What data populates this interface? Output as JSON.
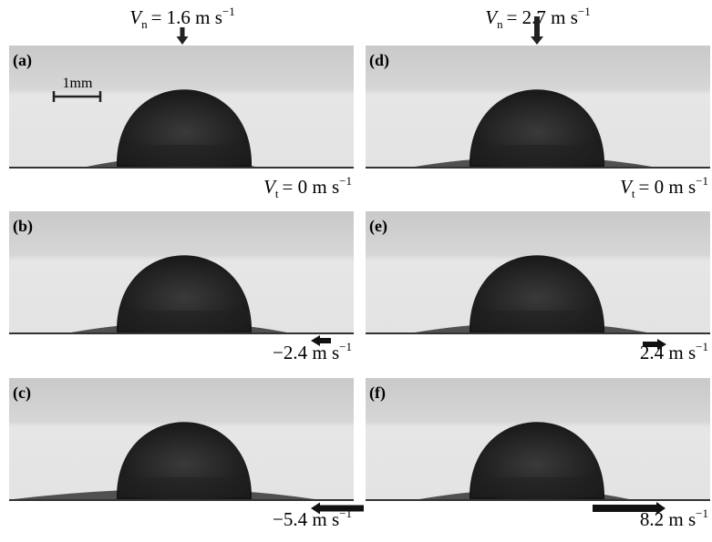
{
  "top_labels": [
    {
      "symbol": "V",
      "sub": "n",
      "text": "= 1.6  m s",
      "sup": "−1"
    },
    {
      "symbol": "V",
      "sub": "n",
      "text": "= 2.7  m s",
      "sup": "−1"
    }
  ],
  "scale_bar": "1mm",
  "panels": [
    {
      "label": "(a)",
      "velocity": {
        "symbol": "V",
        "sub": "t",
        "text": "= 0  m s",
        "sup": "−1"
      }
    },
    {
      "label": "(b)",
      "velocity": {
        "text": "−2.4 m s",
        "sup": "−1"
      }
    },
    {
      "label": "(c)",
      "velocity": {
        "text": "−5.4 m s",
        "sup": "−1"
      }
    },
    {
      "label": "(d)",
      "velocity": {
        "symbol": "V",
        "sub": "t",
        "text": "= 0  m s",
        "sup": "−1"
      }
    },
    {
      "label": "(e)",
      "velocity": {
        "text": "2.4 m s",
        "sup": "−1"
      }
    },
    {
      "label": "(f)",
      "velocity": {
        "text": "8.2 m s",
        "sup": "−1"
      }
    }
  ]
}
